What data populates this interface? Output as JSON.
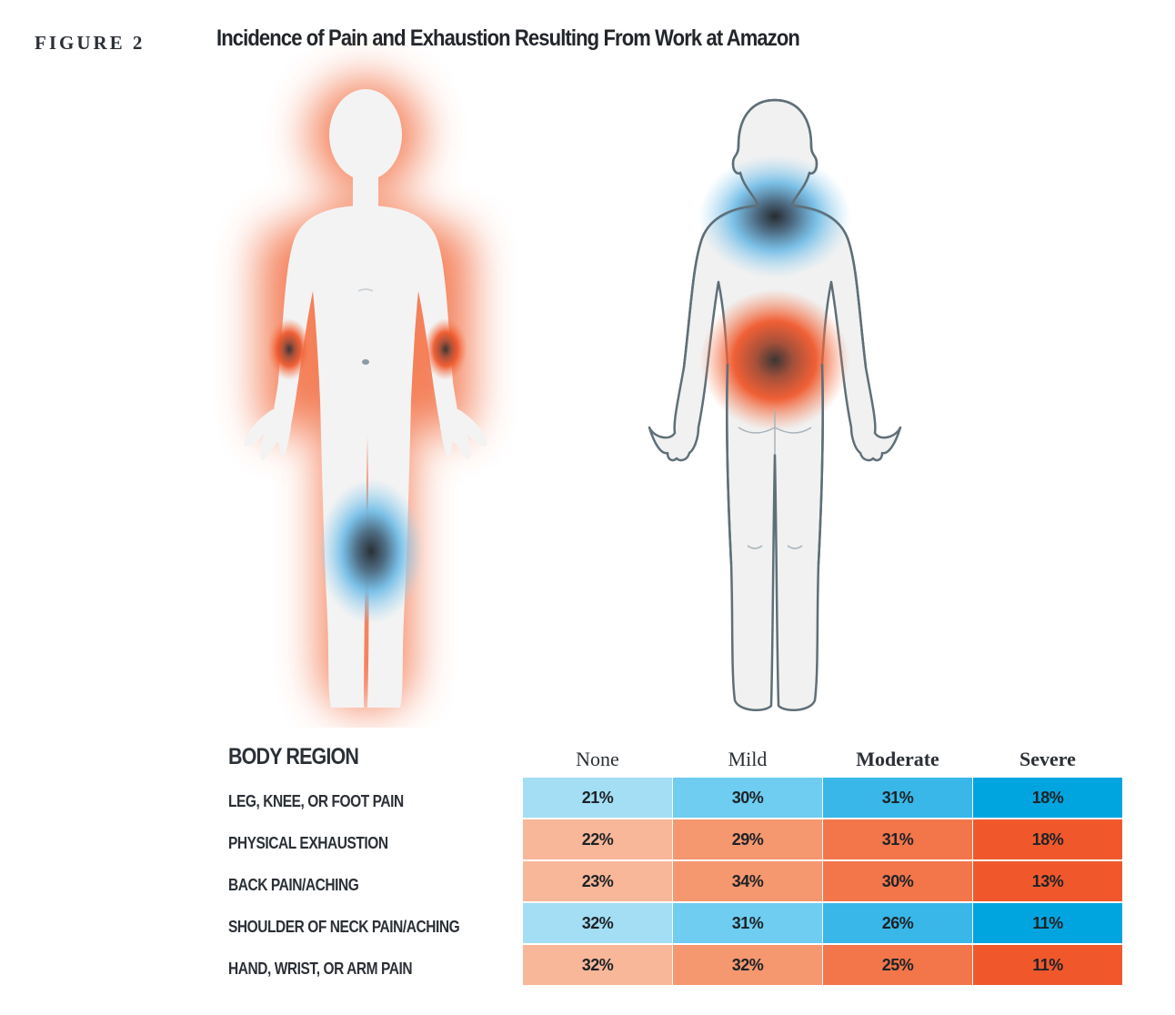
{
  "figure_label": "FIGURE 2",
  "title": "Incidence of Pain and Exhaustion Resulting From Work at Amazon",
  "chart_data": {
    "type": "table",
    "title": "Incidence of Pain and Exhaustion Resulting From Work at Amazon",
    "row_header": "BODY REGION",
    "columns": [
      "None",
      "Mild",
      "Moderate",
      "Severe"
    ],
    "rows": [
      {
        "label": "LEG, KNEE, OR FOOT PAIN",
        "values": [
          "21%",
          "30%",
          "31%",
          "18%"
        ],
        "palette": "blue"
      },
      {
        "label": "PHYSICAL EXHAUSTION",
        "values": [
          "22%",
          "29%",
          "31%",
          "18%"
        ],
        "palette": "orange"
      },
      {
        "label": "BACK PAIN/ACHING",
        "values": [
          "23%",
          "34%",
          "30%",
          "13%"
        ],
        "palette": "orange"
      },
      {
        "label": "SHOULDER OF NECK PAIN/ACHING",
        "values": [
          "32%",
          "31%",
          "26%",
          "11%"
        ],
        "palette": "blue"
      },
      {
        "label": "HAND, WRIST, OR ARM PAIN",
        "values": [
          "32%",
          "32%",
          "25%",
          "11%"
        ],
        "palette": "orange"
      }
    ]
  },
  "colors": {
    "blue": [
      "#a3def5",
      "#6ecdf0",
      "#38b7e8",
      "#00a4df"
    ],
    "orange": [
      "#f8b799",
      "#f5976f",
      "#f2764a",
      "#f0582c"
    ],
    "silhouette": "#f1f1f1",
    "outline": "#5f6f78"
  }
}
